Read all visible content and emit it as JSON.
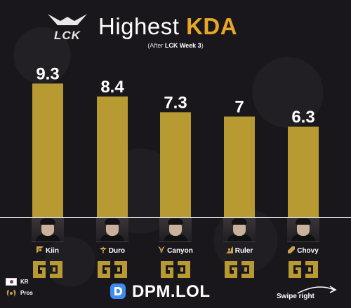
{
  "header": {
    "logo_text": "LCK",
    "title_main": "Highest",
    "title_accent": "KDA",
    "subtitle_prefix": "(After ",
    "subtitle_bold": "LCK Week 3",
    "subtitle_suffix": ")"
  },
  "chart_data": {
    "type": "bar",
    "title": "Highest KDA",
    "subtitle": "(After LCK Week 3)",
    "categories": [
      "Kiin",
      "Duro",
      "Canyon",
      "Ruler",
      "Chovy"
    ],
    "values": [
      9.3,
      8.4,
      7.3,
      7,
      6.3
    ],
    "value_labels": [
      "9.3",
      "8.4",
      "7.3",
      "7",
      "6.3"
    ],
    "ylim": [
      0,
      10
    ],
    "grid": false,
    "bar_color": "#b89a32",
    "value_label_color": "#ffffff"
  },
  "players": [
    {
      "name": "Kiin",
      "role": "top",
      "team": "GEN"
    },
    {
      "name": "Duro",
      "role": "support",
      "team": "GEN"
    },
    {
      "name": "Canyon",
      "role": "jungle",
      "team": "GEN"
    },
    {
      "name": "Ruler",
      "role": "bottom",
      "team": "GEN"
    },
    {
      "name": "Chovy",
      "role": "mid",
      "team": "GEN"
    }
  ],
  "legend": {
    "kr_label": "KR",
    "pros_label": "Pros"
  },
  "brand": {
    "name": "DPM.LOL"
  },
  "footer": {
    "swipe_label": "Swipe right"
  },
  "colors": {
    "background": "#19171c",
    "accent": "#e8a628",
    "bar": "#b89a32",
    "team_gold": "#b89a32"
  }
}
